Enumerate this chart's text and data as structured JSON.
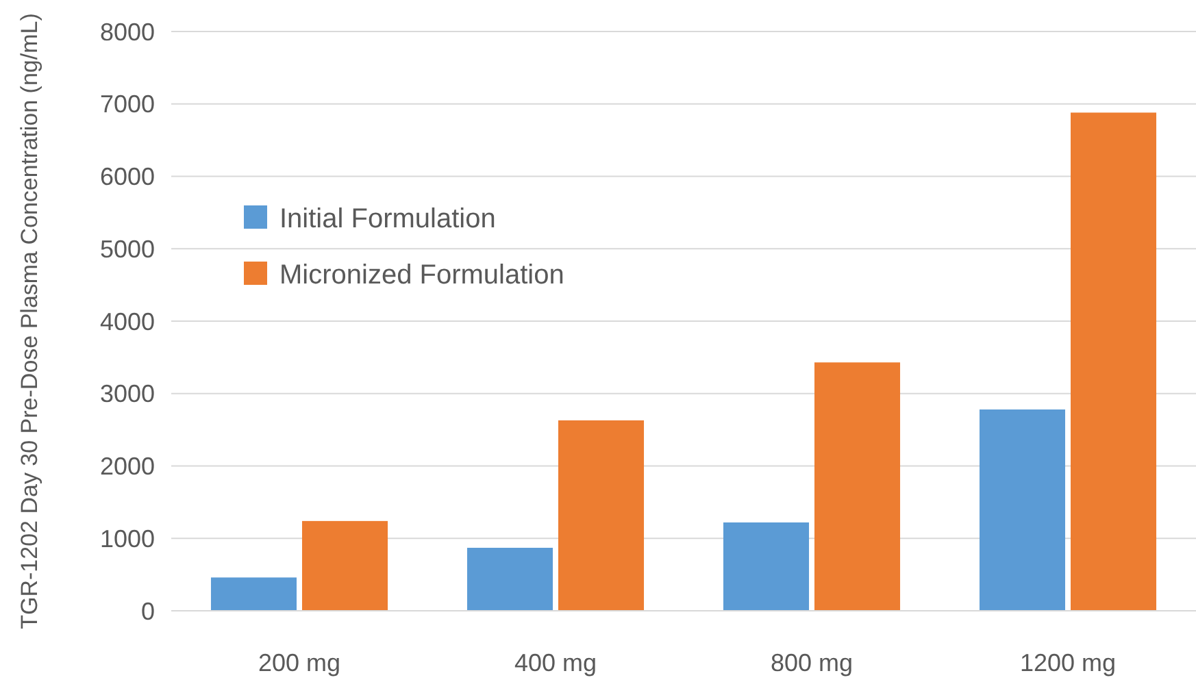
{
  "chart_data": {
    "type": "bar",
    "ylabel": "TGR-1202 Day 30 Pre-Dose Plasma Concentration (ng/mL)",
    "categories": [
      "200 mg",
      "400 mg",
      "800 mg",
      "1200 mg"
    ],
    "series": [
      {
        "name": "Initial Formulation",
        "color": "#5b9bd5",
        "values": [
          460,
          870,
          1220,
          2780
        ]
      },
      {
        "name": "Micronized Formulation",
        "color": "#ed7d31",
        "values": [
          1240,
          2630,
          3430,
          6880
        ]
      }
    ],
    "ylim": [
      0,
      8000
    ],
    "yticks": [
      0,
      1000,
      2000,
      3000,
      4000,
      5000,
      6000,
      7000,
      8000
    ],
    "grid": "y",
    "legend": "top left"
  }
}
